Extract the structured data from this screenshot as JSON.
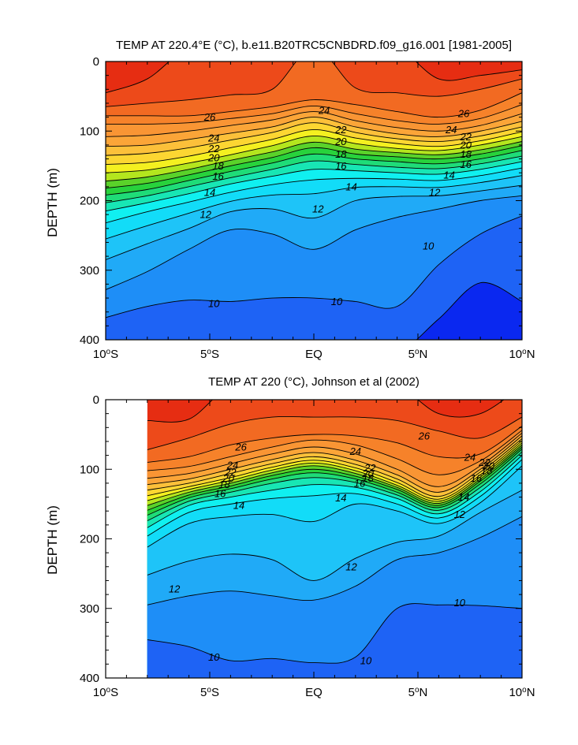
{
  "colors": {
    "temperature_bands": [
      {
        "min": 8,
        "color": "#0a28f0"
      },
      {
        "min": 9,
        "color": "#1e63f5"
      },
      {
        "min": 10,
        "color": "#1e8ef7"
      },
      {
        "min": 11,
        "color": "#20aaf7"
      },
      {
        "min": 12,
        "color": "#1ec4f8"
      },
      {
        "min": 13,
        "color": "#12dcf8"
      },
      {
        "min": 14,
        "color": "#10f0f0"
      },
      {
        "min": 15,
        "color": "#18e6b4"
      },
      {
        "min": 16,
        "color": "#1fdc78"
      },
      {
        "min": 17,
        "color": "#28d23c"
      },
      {
        "min": 18,
        "color": "#5ad22a"
      },
      {
        "min": 19,
        "color": "#b4e61e"
      },
      {
        "min": 20,
        "color": "#f4f020"
      },
      {
        "min": 21,
        "color": "#fcd632"
      },
      {
        "min": 22,
        "color": "#fcc03a"
      },
      {
        "min": 23,
        "color": "#fba538"
      },
      {
        "min": 24,
        "color": "#f99534"
      },
      {
        "min": 25,
        "color": "#f6822a"
      },
      {
        "min": 26,
        "color": "#f26a22"
      },
      {
        "min": 27,
        "color": "#ed4a1a"
      },
      {
        "min": 28,
        "color": "#e62d12"
      }
    ]
  },
  "chart_data": [
    {
      "type": "contour",
      "title": "TEMP AT 220.4°E (°C), b.e11.B20TRC5CNBDRD.f09_g16.001 [1981-2005]",
      "ylabel": "DEPTH (m)",
      "xlim": [
        -10,
        10
      ],
      "ylim": [
        400,
        0
      ],
      "y_inverted": true,
      "x_ticks": [
        -10,
        -5,
        0,
        5,
        10
      ],
      "x_tick_labels": [
        "10°S",
        "5°S",
        "EQ",
        "5°N",
        "10°N"
      ],
      "y_ticks": [
        0,
        100,
        200,
        300,
        400
      ],
      "y_tick_labels": [
        "0",
        "100",
        "200",
        "300",
        "400"
      ],
      "contour_interval": 1,
      "data_lon_range": [
        -10,
        10
      ],
      "isotherm_depths": {
        "lats": [
          -10,
          -8,
          -6,
          -4,
          -2,
          0,
          2,
          4,
          6,
          8,
          10
        ],
        "levels": [
          {
            "t": 28,
            "d": [
              45,
              25,
              null,
              null,
              null,
              null,
              null,
              null,
              25,
              20,
              12
            ]
          },
          {
            "t": 27,
            "d": [
              65,
              60,
              55,
              48,
              40,
              null,
              38,
              45,
              50,
              40,
              25
            ]
          },
          {
            "t": 26,
            "d": [
              78,
              78,
              78,
              72,
              65,
              55,
              62,
              72,
              80,
              70,
              45
            ]
          },
          {
            "t": 25,
            "d": [
              90,
              90,
              88,
              82,
              75,
              64,
              75,
              85,
              90,
              82,
              62
            ]
          },
          {
            "t": 24,
            "d": [
              108,
              106,
              100,
              92,
              84,
              72,
              85,
              95,
              100,
              92,
              75
            ]
          },
          {
            "t": 23,
            "d": [
              122,
              120,
              112,
              103,
              94,
              80,
              94,
              104,
              108,
              100,
              86
            ]
          },
          {
            "t": 22,
            "d": [
              135,
              132,
              124,
              113,
              102,
              88,
              102,
              111,
              115,
              107,
              94
            ]
          },
          {
            "t": 21,
            "d": [
              148,
              145,
              136,
              124,
              112,
              98,
              110,
              118,
              122,
              114,
              101
            ]
          },
          {
            "t": 20,
            "d": [
              160,
              156,
              146,
              134,
              121,
              107,
              118,
              125,
              128,
              120,
              108
            ]
          },
          {
            "t": 19,
            "d": [
              172,
              166,
              155,
              142,
              130,
              116,
              126,
              131,
              134,
              127,
              115
            ]
          },
          {
            "t": 18,
            "d": [
              182,
              175,
              163,
              150,
              138,
              124,
              133,
              137,
              140,
              133,
              121
            ]
          },
          {
            "t": 17,
            "d": [
              192,
              184,
              171,
              158,
              146,
              133,
              140,
              144,
              147,
              140,
              128
            ]
          },
          {
            "t": 16,
            "d": [
              203,
              193,
              180,
              167,
              155,
              143,
              148,
              152,
              154,
              147,
              136
            ]
          },
          {
            "t": 15,
            "d": [
              215,
              203,
              190,
              176,
              165,
              155,
              157,
              160,
              162,
              155,
              144
            ]
          },
          {
            "t": 14,
            "d": [
              232,
              216,
              202,
              188,
              177,
              170,
              168,
              169,
              171,
              164,
              153
            ]
          },
          {
            "t": 13,
            "d": [
              255,
              236,
              218,
              201,
              192,
              190,
              181,
              180,
              181,
              174,
              164
            ]
          },
          {
            "t": 12,
            "d": [
              285,
              262,
              240,
              216,
              212,
              225,
              200,
              194,
              193,
              186,
              178
            ]
          },
          {
            "t": 11,
            "d": [
              328,
              302,
              270,
              242,
              248,
              270,
              242,
              224,
              212,
              200,
              193
            ]
          },
          {
            "t": 10,
            "d": [
              368,
              352,
              343,
              345,
              340,
              340,
              345,
              352,
              292,
              248,
              222
            ]
          },
          {
            "t": 9,
            "d": [
              420,
              420,
              420,
              420,
              420,
              420,
              420,
              420,
              370,
              318,
              345
            ]
          }
        ]
      },
      "contour_labels": [
        {
          "text": "26",
          "lon": -5,
          "depth": 80
        },
        {
          "text": "24",
          "lon": 0.5,
          "depth": 70
        },
        {
          "text": "26",
          "lon": 7.2,
          "depth": 75
        },
        {
          "text": "24",
          "lon": -4.8,
          "depth": 110
        },
        {
          "text": "22",
          "lon": -4.8,
          "depth": 125
        },
        {
          "text": "20",
          "lon": -4.8,
          "depth": 138
        },
        {
          "text": "18",
          "lon": -4.6,
          "depth": 150
        },
        {
          "text": "22",
          "lon": 1.3,
          "depth": 98
        },
        {
          "text": "20",
          "lon": 1.3,
          "depth": 115
        },
        {
          "text": "18",
          "lon": 1.3,
          "depth": 133
        },
        {
          "text": "16",
          "lon": 1.3,
          "depth": 150
        },
        {
          "text": "24",
          "lon": 6.6,
          "depth": 98
        },
        {
          "text": "22",
          "lon": 7.3,
          "depth": 108
        },
        {
          "text": "20",
          "lon": 7.3,
          "depth": 120
        },
        {
          "text": "18",
          "lon": 7.3,
          "depth": 133
        },
        {
          "text": "16",
          "lon": 7.3,
          "depth": 148
        },
        {
          "text": "14",
          "lon": 6.5,
          "depth": 163
        },
        {
          "text": "16",
          "lon": -4.6,
          "depth": 165
        },
        {
          "text": "14",
          "lon": -5,
          "depth": 188
        },
        {
          "text": "14",
          "lon": 1.8,
          "depth": 180
        },
        {
          "text": "12",
          "lon": -5.2,
          "depth": 220
        },
        {
          "text": "12",
          "lon": 0.2,
          "depth": 212
        },
        {
          "text": "12",
          "lon": 5.8,
          "depth": 188
        },
        {
          "text": "10",
          "lon": 5.5,
          "depth": 265
        },
        {
          "text": "10",
          "lon": -4.8,
          "depth": 348
        },
        {
          "text": "10",
          "lon": 1.1,
          "depth": 345
        }
      ]
    },
    {
      "type": "contour",
      "title": "TEMP AT 220 (°C), Johnson et al (2002)",
      "ylabel": "DEPTH (m)",
      "xlim": [
        -10,
        10
      ],
      "ylim": [
        400,
        0
      ],
      "y_inverted": true,
      "x_ticks": [
        -10,
        -5,
        0,
        5,
        10
      ],
      "x_tick_labels": [
        "10°S",
        "5°S",
        "EQ",
        "5°N",
        "10°N"
      ],
      "y_ticks": [
        0,
        100,
        200,
        300,
        400
      ],
      "y_tick_labels": [
        "0",
        "100",
        "200",
        "300",
        "400"
      ],
      "contour_interval": 1,
      "data_lon_range": [
        -8,
        10
      ],
      "isotherm_depths": {
        "lats": [
          -8,
          -6,
          -4,
          -2,
          0,
          2,
          4,
          6,
          8,
          10
        ],
        "levels": [
          {
            "t": 28,
            "d": [
              30,
              28,
              null,
              null,
              null,
              null,
              null,
              20,
              20,
              null
            ]
          },
          {
            "t": 27,
            "d": [
              72,
              55,
              35,
              25,
              25,
              25,
              30,
              45,
              55,
              25
            ]
          },
          {
            "t": 26,
            "d": [
              90,
              82,
              65,
              55,
              50,
              52,
              62,
              82,
              78,
              38
            ]
          },
          {
            "t": 25,
            "d": [
              102,
              96,
              82,
              68,
              58,
              65,
              85,
              108,
              88,
              44
            ]
          },
          {
            "t": 24,
            "d": [
              113,
              106,
              92,
              78,
              68,
              78,
              100,
              125,
              95,
              48
            ]
          },
          {
            "t": 23,
            "d": [
              122,
              114,
              100,
              86,
              76,
              87,
              108,
              133,
              100,
              52
            ]
          },
          {
            "t": 22,
            "d": [
              130,
              120,
              106,
              92,
              82,
              93,
              114,
              139,
              104,
              56
            ]
          },
          {
            "t": 21,
            "d": [
              138,
              125,
              112,
              97,
              87,
              98,
              119,
              143,
              108,
              59
            ]
          },
          {
            "t": 20,
            "d": [
              145,
              129,
              116,
              101,
              91,
              102,
              123,
              146,
              111,
              62
            ]
          },
          {
            "t": 19,
            "d": [
              152,
              133,
              120,
              105,
              95,
              106,
              126,
              149,
              114,
              65
            ]
          },
          {
            "t": 18,
            "d": [
              159,
              137,
              124,
              109,
              100,
              110,
              129,
              152,
              117,
              68
            ]
          },
          {
            "t": 17,
            "d": [
              166,
              141,
              128,
              114,
              105,
              114,
              133,
              155,
              121,
              71
            ]
          },
          {
            "t": 16,
            "d": [
              174,
              146,
              133,
              120,
              112,
              119,
              137,
              159,
              126,
              75
            ]
          },
          {
            "t": 15,
            "d": [
              184,
              152,
              140,
              130,
              122,
              126,
              142,
              164,
              132,
              80
            ]
          },
          {
            "t": 14,
            "d": [
              196,
              162,
              150,
              142,
              138,
              135,
              150,
              170,
              139,
              86
            ]
          },
          {
            "t": 13,
            "d": [
              212,
              178,
              168,
              165,
              175,
              150,
              160,
              178,
              148,
              95
            ]
          },
          {
            "t": 12,
            "d": [
              252,
              232,
              222,
              230,
              260,
              228,
              205,
              196,
              162,
              130
            ]
          },
          {
            "t": 11,
            "d": [
              295,
              282,
              275,
              282,
              288,
              268,
              230,
              220,
              198,
              168
            ]
          },
          {
            "t": 10,
            "d": [
              345,
              355,
              375,
              372,
              378,
              370,
              300,
              295,
              296,
              300
            ]
          },
          {
            "t": 9,
            "d": [
              420,
              420,
              420,
              420,
              420,
              420,
              420,
              420,
              420,
              420
            ]
          }
        ]
      },
      "contour_labels": [
        {
          "text": "26",
          "lon": -3.5,
          "depth": 68
        },
        {
          "text": "24",
          "lon": -3.9,
          "depth": 94
        },
        {
          "text": "22",
          "lon": -4,
          "depth": 104
        },
        {
          "text": "20",
          "lon": -4.1,
          "depth": 113
        },
        {
          "text": "18",
          "lon": -4.3,
          "depth": 122
        },
        {
          "text": "16",
          "lon": -4.5,
          "depth": 135
        },
        {
          "text": "14",
          "lon": -3.6,
          "depth": 152
        },
        {
          "text": "24",
          "lon": 2,
          "depth": 74
        },
        {
          "text": "26",
          "lon": 5.3,
          "depth": 52
        },
        {
          "text": "22",
          "lon": 2.7,
          "depth": 98
        },
        {
          "text": "20",
          "lon": 2.6,
          "depth": 106
        },
        {
          "text": "18",
          "lon": 2.6,
          "depth": 113
        },
        {
          "text": "16",
          "lon": 2.2,
          "depth": 120
        },
        {
          "text": "14",
          "lon": 1.3,
          "depth": 141
        },
        {
          "text": "24",
          "lon": 7.5,
          "depth": 83
        },
        {
          "text": "22",
          "lon": 8.2,
          "depth": 90
        },
        {
          "text": "20",
          "lon": 8.4,
          "depth": 95
        },
        {
          "text": "18",
          "lon": 8.3,
          "depth": 102
        },
        {
          "text": "16",
          "lon": 7.8,
          "depth": 113
        },
        {
          "text": "14",
          "lon": 7.2,
          "depth": 140
        },
        {
          "text": "12",
          "lon": 7,
          "depth": 165
        },
        {
          "text": "12",
          "lon": 1.8,
          "depth": 240
        },
        {
          "text": "12",
          "lon": -6.7,
          "depth": 272
        },
        {
          "text": "10",
          "lon": 7,
          "depth": 292
        },
        {
          "text": "10",
          "lon": -4.8,
          "depth": 370
        },
        {
          "text": "10",
          "lon": 2.5,
          "depth": 375
        }
      ]
    }
  ]
}
